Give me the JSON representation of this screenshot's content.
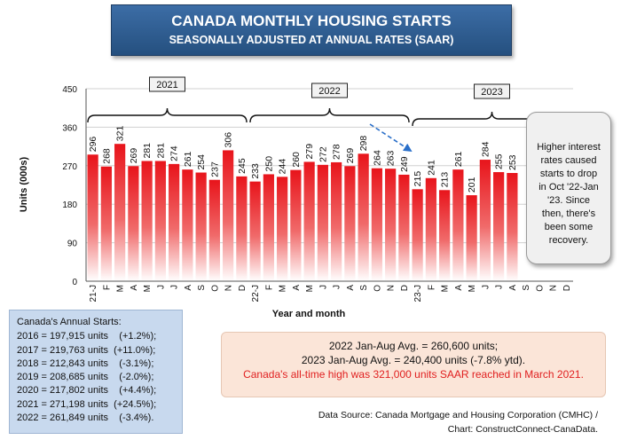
{
  "header": {
    "title": "CANADA MONTHLY HOUSING STARTS",
    "subtitle": "SEASONALLY ADJUSTED AT ANNUAL RATES (SAAR)"
  },
  "chart_data": {
    "type": "bar",
    "title": "CANADA MONTHLY HOUSING STARTS",
    "subtitle": "SEASONALLY ADJUSTED AT ANNUAL RATES (SAAR)",
    "xlabel": "Year and month",
    "ylabel": "Units (000s)",
    "ylim": [
      0,
      450
    ],
    "yticks": [
      0,
      90,
      180,
      270,
      360,
      450
    ],
    "categories": [
      "21-J",
      "F",
      "M",
      "A",
      "M",
      "J",
      "J",
      "A",
      "S",
      "O",
      "N",
      "D",
      "22-J",
      "F",
      "M",
      "A",
      "M",
      "J",
      "J",
      "A",
      "S",
      "O",
      "N",
      "D",
      "23-J",
      "F",
      "M",
      "A",
      "M",
      "J",
      "J",
      "A",
      "S",
      "O",
      "N",
      "D"
    ],
    "values": [
      296,
      268,
      321,
      269,
      281,
      281,
      274,
      261,
      254,
      237,
      306,
      245,
      233,
      250,
      244,
      260,
      279,
      272,
      278,
      269,
      298,
      264,
      263,
      249,
      215,
      241,
      213,
      261,
      201,
      284,
      255,
      253,
      null,
      null,
      null,
      null
    ],
    "bar_color": "#e8141b",
    "year_groups": [
      "2021",
      "2022",
      "2023"
    ],
    "arrow_color": "#2a6fc9"
  },
  "callout": {
    "lines": [
      "Higher interest",
      "rates caused",
      "starts to drop",
      "in Oct '22-Jan",
      "'23. Since",
      "then,  there's",
      "been some",
      "recovery."
    ]
  },
  "annual": {
    "heading": "Canada's Annual Starts:",
    "rows": [
      "2016 = 197,915 units    (+1.2%);",
      "2017 = 219,763 units  (+11.0%);",
      "2018 = 212,843 units    (-3.1%);",
      "2019 = 208,685 units    (-2.0%);",
      "2020 = 217,802 units    (+4.4%);",
      "2021 = 271,198 units  (+24.5%);",
      "2022 = 261,849 units    (-3.4%)."
    ]
  },
  "averages": {
    "line1": "2022 Jan-Aug Avg. = 260,600 units;",
    "line2": "2023 Jan-Aug Avg. = 240,400 units (-7.8% ytd).",
    "line3": "Canada's all-time high was 321,000 units SAAR reached in March 2021."
  },
  "source": {
    "line1": "Data Source:  Canada Mortgage and Housing Corporation (CMHC) /",
    "line2": "Chart: ConstructConnect-CanaData."
  }
}
